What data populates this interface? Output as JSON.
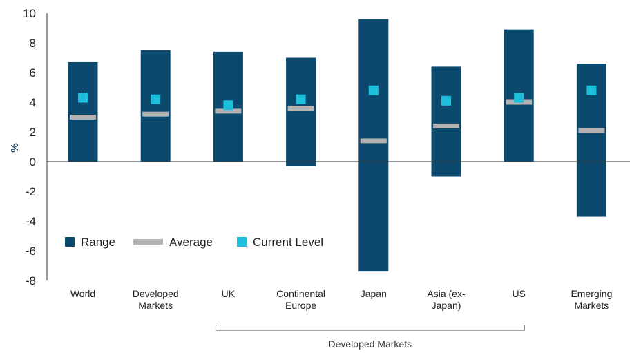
{
  "chart_data": {
    "type": "bar",
    "ylabel": "%",
    "ylim": [
      -8,
      10
    ],
    "yticks": [
      10,
      8,
      6,
      4,
      2,
      0,
      -2,
      -4,
      -6,
      -8
    ],
    "categories": [
      "World",
      "Developed Markets",
      "UK",
      "Continental Europe",
      "Japan",
      "Asia (ex-Japan)",
      "US",
      "Emerging Markets"
    ],
    "category_lines": [
      [
        "World"
      ],
      [
        "Developed",
        "Markets"
      ],
      [
        "UK"
      ],
      [
        "Continental",
        "Europe"
      ],
      [
        "Japan"
      ],
      [
        "Asia (ex-",
        "Japan)"
      ],
      [
        "US"
      ],
      [
        "Emerging",
        "Markets"
      ]
    ],
    "series": [
      {
        "name": "Range",
        "low": [
          0,
          0,
          0,
          -0.3,
          -7.4,
          -1.0,
          0,
          -3.7
        ],
        "high": [
          6.7,
          7.5,
          7.4,
          7.0,
          9.6,
          6.4,
          8.9,
          6.6
        ]
      },
      {
        "name": "Average",
        "values": [
          3.0,
          3.2,
          3.4,
          3.6,
          1.4,
          2.4,
          4.0,
          2.1
        ]
      },
      {
        "name": "Current Level",
        "values": [
          4.3,
          4.2,
          3.8,
          4.2,
          4.8,
          4.1,
          4.3,
          4.8
        ]
      }
    ],
    "group_label": "Developed Markets",
    "group_span": [
      "UK",
      "US"
    ],
    "grid": false,
    "legend_position": "bottom-left",
    "colors": {
      "range": "#0b4a6e",
      "average": "#b3b3b3",
      "current": "#1ebfdc",
      "axis": "#3a3a3a"
    }
  }
}
